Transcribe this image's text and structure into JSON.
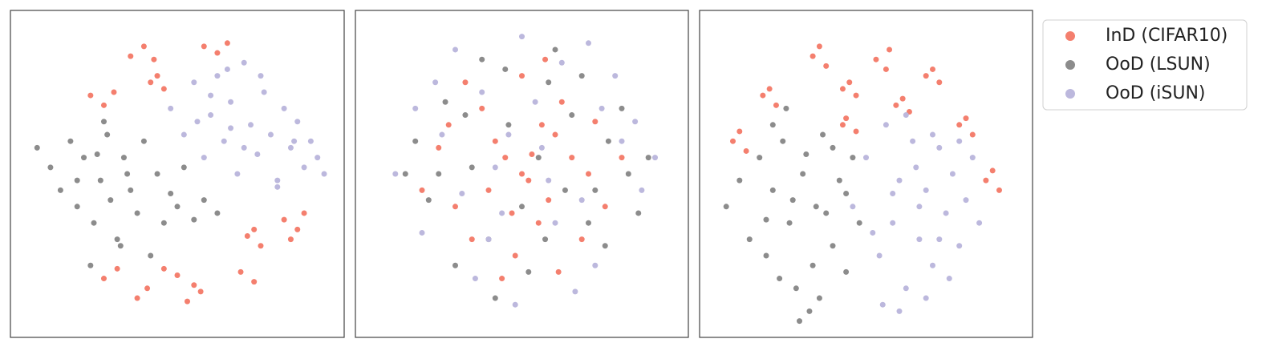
{
  "chart_data": [
    {
      "type": "scatter",
      "xlim": [
        0,
        100
      ],
      "ylim": [
        0,
        100
      ],
      "series": [
        {
          "color": "#f47f6e",
          "x": [
            36,
            40,
            43,
            58,
            62,
            65,
            24,
            28,
            31,
            42,
            46,
            44,
            82,
            86,
            88,
            71,
            75,
            73,
            46,
            50,
            38,
            41,
            53,
            57,
            69,
            73,
            28,
            32,
            84,
            55
          ],
          "values": [
            86,
            89,
            85,
            89,
            87,
            90,
            74,
            71,
            75,
            78,
            76,
            80,
            36,
            33,
            38,
            31,
            28,
            33,
            21,
            19,
            12,
            15,
            11,
            14,
            20,
            17,
            18,
            21,
            30,
            16
          ]
        },
        {
          "color": "#8c8c8c",
          "x": [
            8,
            12,
            15,
            18,
            20,
            22,
            25,
            27,
            29,
            30,
            32,
            34,
            36,
            38,
            40,
            42,
            44,
            46,
            48,
            50,
            52,
            55,
            58,
            62,
            24,
            28,
            33,
            20,
            26,
            35
          ],
          "values": [
            58,
            52,
            45,
            60,
            40,
            55,
            35,
            48,
            62,
            42,
            30,
            55,
            45,
            38,
            60,
            25,
            50,
            35,
            44,
            40,
            52,
            36,
            42,
            38,
            22,
            66,
            28,
            48,
            56,
            50
          ]
        },
        {
          "color": "#bcb8dd",
          "x": [
            48,
            52,
            55,
            58,
            60,
            62,
            64,
            66,
            68,
            70,
            72,
            74,
            76,
            78,
            80,
            82,
            84,
            86,
            88,
            90,
            92,
            94,
            56,
            60,
            65,
            70,
            75,
            80,
            85,
            66
          ],
          "values": [
            70,
            62,
            78,
            55,
            68,
            80,
            60,
            72,
            50,
            84,
            65,
            56,
            75,
            62,
            48,
            70,
            58,
            66,
            52,
            60,
            55,
            50,
            66,
            74,
            82,
            58,
            80,
            46,
            60,
            64
          ]
        }
      ]
    },
    {
      "type": "scatter",
      "xlim": [
        0,
        100
      ],
      "ylim": [
        0,
        100
      ],
      "series": [
        {
          "color": "#f47f6e",
          "x": [
            30,
            45,
            52,
            60,
            38,
            55,
            70,
            25,
            48,
            62,
            42,
            58,
            35,
            65,
            50,
            20,
            75,
            44,
            56,
            68,
            28,
            40,
            53,
            61,
            47,
            33,
            72,
            57,
            50,
            80
          ],
          "values": [
            40,
            55,
            48,
            62,
            70,
            35,
            50,
            58,
            25,
            72,
            60,
            42,
            30,
            55,
            80,
            45,
            40,
            18,
            65,
            30,
            65,
            45,
            56,
            20,
            38,
            78,
            66,
            85,
            50,
            55
          ]
        },
        {
          "color": "#8c8c8c",
          "x": [
            18,
            22,
            27,
            35,
            40,
            46,
            52,
            58,
            63,
            70,
            76,
            82,
            85,
            30,
            45,
            55,
            65,
            75,
            25,
            50,
            60,
            38,
            42,
            68,
            80,
            15,
            88,
            33,
            57,
            72
          ],
          "values": [
            60,
            42,
            72,
            52,
            30,
            65,
            20,
            78,
            45,
            35,
            60,
            50,
            38,
            22,
            82,
            55,
            68,
            28,
            50,
            40,
            88,
            85,
            12,
            80,
            70,
            50,
            55,
            68,
            30,
            45
          ]
        },
        {
          "color": "#bcb8dd",
          "x": [
            12,
            20,
            26,
            32,
            38,
            44,
            50,
            56,
            62,
            68,
            74,
            80,
            86,
            90,
            24,
            36,
            48,
            60,
            72,
            84,
            30,
            42,
            54,
            66,
            78,
            18,
            46,
            58,
            70,
            40
          ],
          "values": [
            50,
            32,
            62,
            44,
            75,
            38,
            92,
            58,
            84,
            42,
            70,
            60,
            45,
            55,
            78,
            18,
            10,
            35,
            22,
            66,
            88,
            52,
            72,
            14,
            80,
            70,
            62,
            48,
            90,
            30
          ]
        }
      ]
    },
    {
      "type": "scatter",
      "xlim": [
        0,
        100
      ],
      "ylim": [
        0,
        100
      ],
      "series": [
        {
          "color": "#f47f6e",
          "x": [
            34,
            38,
            53,
            57,
            68,
            72,
            43,
            47,
            19,
            23,
            10,
            14,
            43,
            47,
            59,
            63,
            78,
            82,
            86,
            90,
            36,
            56,
            70,
            45,
            21,
            12,
            61,
            80,
            88,
            44
          ],
          "values": [
            86,
            83,
            85,
            88,
            80,
            78,
            76,
            74,
            74,
            71,
            60,
            57,
            65,
            63,
            71,
            69,
            65,
            62,
            48,
            45,
            89,
            82,
            82,
            78,
            76,
            63,
            73,
            67,
            51,
            67
          ]
        },
        {
          "color": "#8c8c8c",
          "x": [
            8,
            12,
            15,
            18,
            20,
            22,
            25,
            27,
            29,
            31,
            33,
            35,
            37,
            40,
            42,
            44,
            46,
            48,
            26,
            30,
            34,
            22,
            28,
            38,
            24,
            32,
            36,
            44,
            20,
            40
          ],
          "values": [
            40,
            48,
            30,
            55,
            25,
            45,
            60,
            35,
            15,
            50,
            8,
            40,
            62,
            28,
            48,
            20,
            55,
            35,
            70,
            5,
            22,
            65,
            42,
            38,
            18,
            56,
            12,
            44,
            36,
            58
          ]
        },
        {
          "color": "#bcb8dd",
          "x": [
            46,
            50,
            54,
            56,
            58,
            60,
            62,
            64,
            66,
            68,
            70,
            72,
            74,
            76,
            78,
            80,
            82,
            84,
            55,
            60,
            65,
            70,
            75,
            62,
            68,
            52,
            58,
            72,
            66,
            78
          ],
          "values": [
            40,
            55,
            25,
            65,
            35,
            48,
            15,
            60,
            30,
            45,
            22,
            58,
            38,
            50,
            28,
            42,
            55,
            35,
            10,
            8,
            52,
            62,
            18,
            68,
            12,
            32,
            44,
            30,
            40,
            60
          ]
        }
      ]
    }
  ],
  "legend": [
    {
      "name": "InD (CIFAR10)",
      "color": "#f47f6e"
    },
    {
      "name": "OoD (LSUN)",
      "color": "#8c8c8c"
    },
    {
      "name": "OoD (iSUN)",
      "color": "#bcb8dd"
    }
  ]
}
